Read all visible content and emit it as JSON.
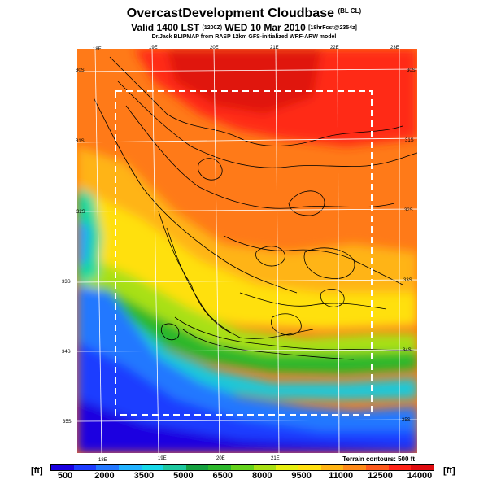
{
  "header": {
    "title": "OvercastDevelopment Cloudbase",
    "title_suffix": "(BL CL)",
    "valid_line": "Valid 1400 LST",
    "valid_code": "(1200Z)",
    "valid_date": "WED 10 Mar 2010",
    "forecast_tag": "[18hrFcst@2354z]",
    "model_line": "Dr.Jack BLIPMAP from RASP 12km GFS-initialized WRF-ARW model"
  },
  "map": {
    "top_longitude_labels": [
      "18E",
      "19E",
      "20E",
      "21E",
      "22E",
      "23E"
    ],
    "bottom_longitude_labels": [
      "18E",
      "19E",
      "20E",
      "21E"
    ],
    "right_latitude_labels": [
      "30S",
      "31S",
      "32S",
      "33S",
      "34S",
      "35S"
    ],
    "left_latitude_labels": [
      "30S",
      "31S",
      "32S",
      "33S",
      "34S",
      "35S"
    ],
    "terrain_note": "Terrain contours: 500 ft"
  },
  "colorbar": {
    "unit_left": "[ft]",
    "unit_right": "[ft]",
    "labels": [
      "500",
      "2000",
      "3500",
      "5000",
      "6500",
      "8000",
      "9500",
      "11000",
      "12500",
      "14000"
    ],
    "colors": [
      "#1a00e0",
      "#1e3cff",
      "#2478ff",
      "#22b2ff",
      "#18d8e8",
      "#1ec8a0",
      "#14a040",
      "#2cb82c",
      "#64d21c",
      "#a8e014",
      "#e6ef10",
      "#ffe010",
      "#ffb414",
      "#ff8a18",
      "#ff5a1c",
      "#ff2418",
      "#e00c10"
    ]
  }
}
